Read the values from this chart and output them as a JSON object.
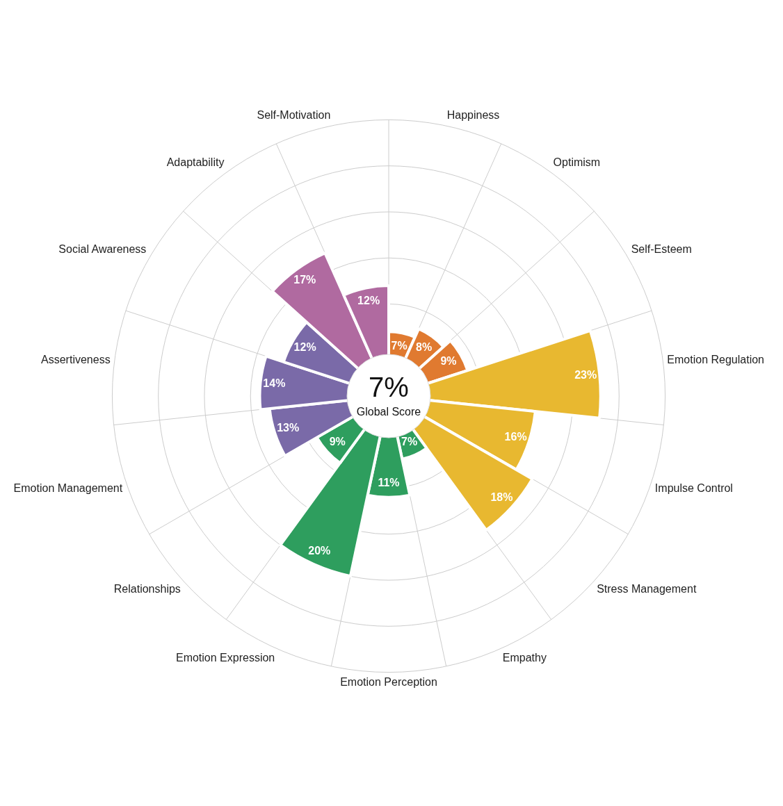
{
  "chart_data": {
    "type": "other",
    "categories": [
      "Happiness",
      "Optimism",
      "Self-Esteem",
      "Emotion Regulation",
      "Impulse Control",
      "Stress Management",
      "Empathy",
      "Emotion Perception",
      "Emotion Expression",
      "Relationships",
      "Emotion Management",
      "Assertiveness",
      "Social Awareness",
      "Adaptability",
      "Self-Motivation"
    ],
    "values": [
      7,
      8,
      9,
      23,
      16,
      18,
      7,
      11,
      20,
      9,
      13,
      14,
      12,
      17,
      12
    ],
    "colors": [
      "#e07a30",
      "#e07a30",
      "#e07a30",
      "#e8b830",
      "#e8b830",
      "#e8b830",
      "#2e9e5e",
      "#2e9e5e",
      "#2e9e5e",
      "#2e9e5e",
      "#7a6aa8",
      "#7a6aa8",
      "#7a6aa8",
      "#b06aa0",
      "#b06aa0"
    ],
    "value_labels": [
      "7%",
      "8%",
      "9%",
      "23%",
      "16%",
      "18%",
      "7%",
      "11%",
      "20%",
      "9%",
      "13%",
      "14%",
      "12%",
      "17%",
      "12%"
    ],
    "annotations": [
      "7%",
      "Global Score"
    ]
  }
}
